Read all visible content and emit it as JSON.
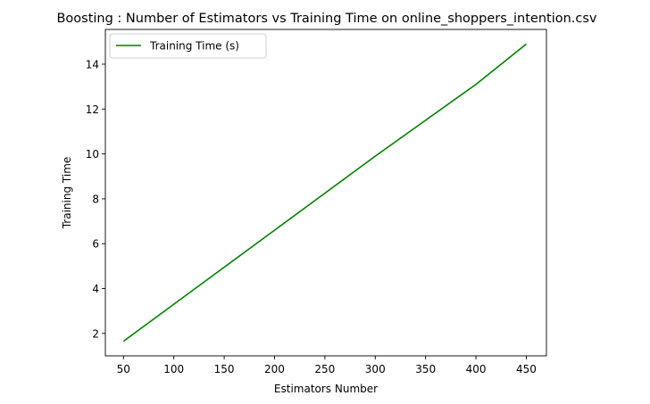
{
  "chart_data": {
    "type": "line",
    "title": "Boosting : Number of Estimators vs Training Time on online_shoppers_intention.csv",
    "xlabel": "Estimators Number",
    "ylabel": "Training Time",
    "x": [
      50,
      100,
      150,
      200,
      250,
      300,
      350,
      400,
      450
    ],
    "series": [
      {
        "name": "Training Time (s)",
        "color": "#008000",
        "values": [
          1.65,
          3.3,
          4.95,
          6.6,
          8.25,
          9.9,
          11.5,
          13.1,
          14.9
        ]
      }
    ],
    "xticks": [
      "50",
      "100",
      "150",
      "200",
      "250",
      "300",
      "350",
      "400",
      "450"
    ],
    "yticks": [
      "2",
      "4",
      "6",
      "8",
      "10",
      "12",
      "14"
    ],
    "xlim": [
      32,
      470
    ],
    "ylim": [
      1.0,
      15.55
    ],
    "grid": false,
    "legend_position": "top-left"
  }
}
